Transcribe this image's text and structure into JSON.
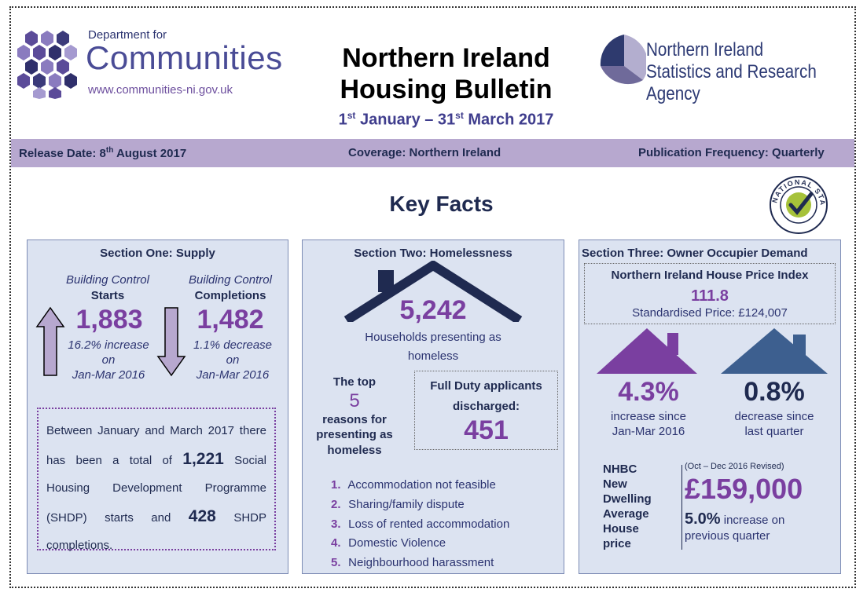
{
  "header": {
    "dfc_line1": "Department for",
    "dfc_line2": "Communities",
    "dfc_url": "www.communities-ni.gov.uk",
    "title_line1": "Northern Ireland",
    "title_line2": "Housing Bulletin",
    "date_from_day": "1",
    "date_from_suffix": "st",
    "date_from_rest": " January – 31",
    "date_to_suffix": "st",
    "date_to_rest": " March 2017",
    "nisra_line1": "Northern Ireland",
    "nisra_line2": "Statistics and Research Agency"
  },
  "band": {
    "release_prefix": "Release Date: 8",
    "release_suffix": "th",
    "release_rest": " August 2017",
    "coverage": "Coverage: Northern Ireland",
    "frequency": "Publication Frequency: Quarterly"
  },
  "key_facts": "Key Facts",
  "badge_text": "NATIONAL STATISTICS",
  "supply": {
    "title": "Section One: Supply",
    "starts_label1": "Building Control",
    "starts_label2": "Starts",
    "starts_value": "1,883",
    "starts_change": "16.2% increase",
    "starts_on": "on",
    "starts_period": "Jan-Mar 2016",
    "comp_label1": "Building Control",
    "comp_label2": "Completions",
    "comp_value": "1,482",
    "comp_change": "1.1% decrease",
    "comp_on": "on",
    "comp_period": "Jan-Mar 2016",
    "shdp_t1": "Between January and March 2017 there has been a total of ",
    "shdp_starts": "1,221",
    "shdp_t2": " Social Housing Development Programme (SHDP) starts and ",
    "shdp_comp": "428",
    "shdp_t3": " SHDP completions."
  },
  "homeless": {
    "title": "Section Two: Homelessness",
    "value": "5,242",
    "label1": "Households presenting as",
    "label2": "homeless",
    "top_the": "The top",
    "top_n": "5",
    "top_rest1": "reasons for",
    "top_rest2": "presenting as",
    "top_rest3": "homeless",
    "fd_label1": "Full Duty applicants",
    "fd_label2": "discharged:",
    "fd_value": "451",
    "reasons": [
      {
        "n": "1.",
        "text": "Accommodation not feasible"
      },
      {
        "n": "2.",
        "text": "Sharing/family dispute"
      },
      {
        "n": "3.",
        "text": "Loss of rented accommodation"
      },
      {
        "n": "4.",
        "text": "Domestic Violence"
      },
      {
        "n": "5.",
        "text": "Neighbourhood harassment"
      }
    ]
  },
  "owner": {
    "title": "Section Three: Owner Occupier Demand",
    "hpi_title": "Northern Ireland House Price Index",
    "hpi_value": "111.8",
    "hpi_std": "Standardised Price: £124,007",
    "inc_value": "4.3%",
    "inc_label1": "increase since",
    "inc_label2": "Jan-Mar 2016",
    "dec_value": "0.8%",
    "dec_label1": "decrease since",
    "dec_label2": "last quarter",
    "nhbc1": "NHBC",
    "nhbc2": "New",
    "nhbc3": "Dwelling",
    "nhbc4": "Average",
    "nhbc5": "House",
    "nhbc6": "price",
    "nhbc_period": "(Oct – Dec 2016 Revised)",
    "nhbc_value": "£159,000",
    "nhbc_change": "5.0%",
    "nhbc_change_label1": " increase on",
    "nhbc_change_label2": "previous quarter"
  },
  "colors": {
    "band": "#b7a8cf",
    "panel": "#dce3f1",
    "purple": "#7a3fa0",
    "navy": "#1f2a50",
    "blue_house": "#3d5f8f"
  }
}
